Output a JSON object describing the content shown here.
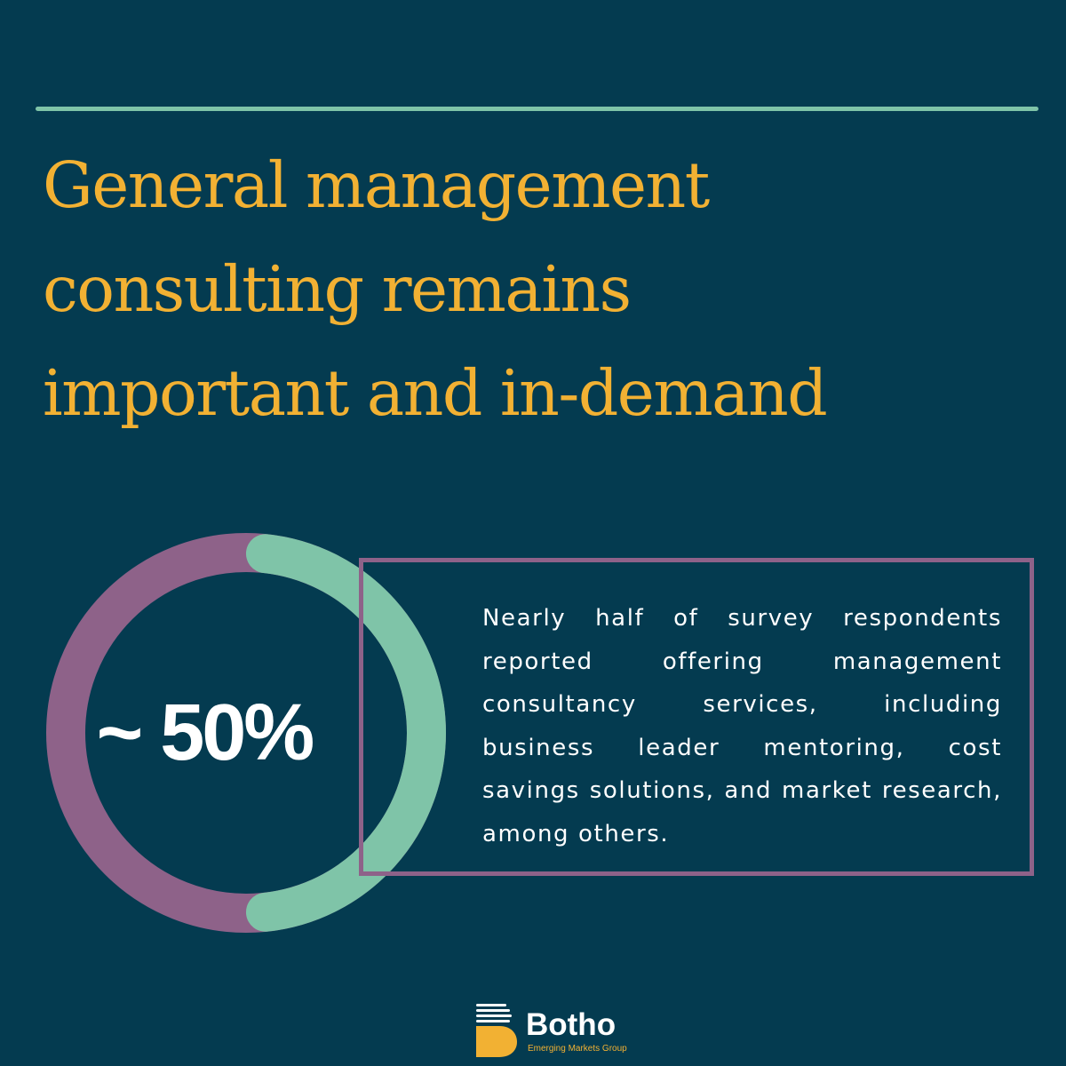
{
  "headline": {
    "line1": "General management",
    "line2": "consulting remains",
    "line3": "important and in-demand"
  },
  "stat": {
    "label": "~ 50%",
    "percent": 50,
    "fill_color": "#7fc4a8",
    "remainder_color": "#8e6289"
  },
  "description": "Nearly half of survey respondents reported offering management consultancy services, including business leader mentoring, cost savings solutions, and market research, among others.",
  "logo": {
    "name": "Botho",
    "tagline": "Emerging Markets Group",
    "icon": "b-mark-icon",
    "brand_color": "#f2b133"
  },
  "colors": {
    "background": "#043b50",
    "headline": "#f2b133",
    "rule": "#7fc4a8",
    "box_border": "#8e6289",
    "text": "#ffffff"
  }
}
